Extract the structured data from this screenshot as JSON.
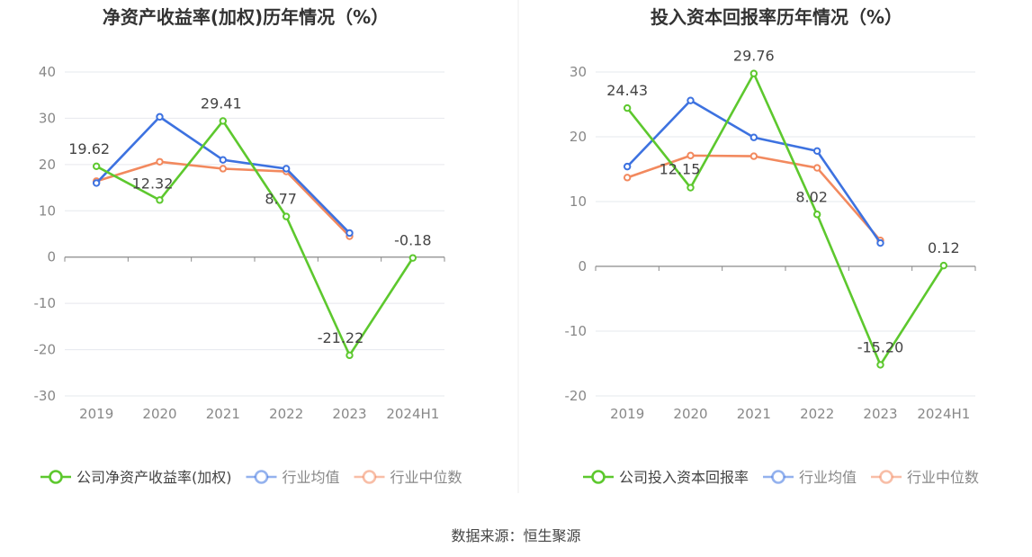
{
  "chart_data": [
    {
      "type": "line",
      "title": "净资产收益率(加权)历年情况（%）",
      "categories": [
        "2019",
        "2020",
        "2021",
        "2022",
        "2023",
        "2024H1"
      ],
      "ylim": [
        -30,
        40
      ],
      "yticks": [
        -30,
        -20,
        -10,
        0,
        10,
        20,
        30,
        40
      ],
      "series": [
        {
          "name": "公司净资产收益率(加权)",
          "color": "#5dc82e",
          "labeled": true,
          "values": [
            19.62,
            12.32,
            29.41,
            8.77,
            -21.22,
            -0.18
          ],
          "labels": [
            "19.62",
            "12.32",
            "29.41",
            "8.77",
            "-21.22",
            "-0.18"
          ]
        },
        {
          "name": "行业均值",
          "color": "#3d72e0",
          "labeled": false,
          "values": [
            16.0,
            30.3,
            21.0,
            19.1,
            5.2,
            null
          ]
        },
        {
          "name": "行业中位数",
          "color": "#f2895e",
          "labeled": false,
          "values": [
            16.4,
            20.6,
            19.1,
            18.5,
            4.5,
            null
          ]
        }
      ]
    },
    {
      "type": "line",
      "title": "投入资本回报率历年情况（%）",
      "categories": [
        "2019",
        "2020",
        "2021",
        "2022",
        "2023",
        "2024H1"
      ],
      "ylim": [
        -20,
        30
      ],
      "yticks": [
        -20,
        -10,
        0,
        10,
        20,
        30
      ],
      "series": [
        {
          "name": "公司投入资本回报率",
          "color": "#5dc82e",
          "labeled": true,
          "values": [
            24.43,
            12.15,
            29.76,
            8.02,
            -15.2,
            0.12
          ],
          "labels": [
            "24.43",
            "12.15",
            "29.76",
            "8.02",
            "-15.20",
            "0.12"
          ]
        },
        {
          "name": "行业均值",
          "color": "#3d72e0",
          "labeled": false,
          "values": [
            15.4,
            25.6,
            19.9,
            17.8,
            3.6,
            null
          ]
        },
        {
          "name": "行业中位数",
          "color": "#f2895e",
          "labeled": false,
          "values": [
            13.7,
            17.1,
            17.0,
            15.2,
            4.0,
            null
          ]
        }
      ]
    }
  ],
  "footer": {
    "source": "数据来源：恒生聚源"
  }
}
